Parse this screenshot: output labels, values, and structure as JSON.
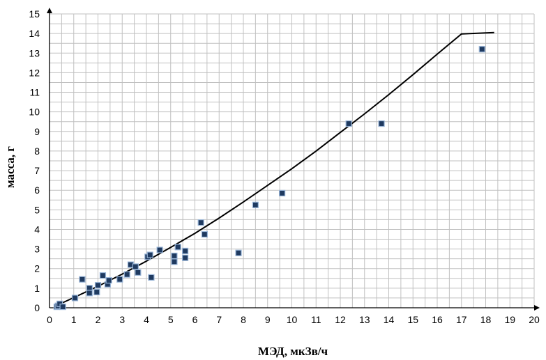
{
  "chart_data": {
    "type": "scatter",
    "title": "",
    "xlabel": "МЭД, мкЗв/ч",
    "ylabel": "масса, г",
    "xlim": [
      0,
      20
    ],
    "ylim": [
      0,
      15
    ],
    "x_ticks": [
      "0",
      "1",
      "2",
      "3",
      "4",
      "5",
      "6",
      "7",
      "8",
      "9",
      "10",
      "11",
      "12",
      "13",
      "14",
      "15",
      "16",
      "17",
      "18",
      "19",
      "20"
    ],
    "y_ticks": [
      "0",
      "1",
      "2",
      "3",
      "4",
      "5",
      "6",
      "7",
      "8",
      "9",
      "10",
      "11",
      "12",
      "13",
      "14",
      "15"
    ],
    "grid": true,
    "legend": "none",
    "colors": {
      "marker_fill": "#1f3a60",
      "marker_edge": "#9ab6d8",
      "trend": "#000000",
      "grid": "#c0c0c0"
    },
    "series": [
      {
        "type": "scatter",
        "points": [
          [
            0.3,
            0.05
          ],
          [
            0.35,
            0.1
          ],
          [
            0.42,
            0.2
          ],
          [
            0.55,
            0.05
          ],
          [
            1.05,
            0.5
          ],
          [
            1.35,
            1.45
          ],
          [
            1.65,
            1.0
          ],
          [
            1.65,
            0.75
          ],
          [
            1.95,
            0.8
          ],
          [
            2.0,
            1.15
          ],
          [
            2.2,
            1.65
          ],
          [
            2.4,
            1.2
          ],
          [
            2.45,
            1.4
          ],
          [
            2.9,
            1.45
          ],
          [
            3.2,
            1.7
          ],
          [
            3.35,
            2.2
          ],
          [
            3.55,
            2.1
          ],
          [
            3.65,
            1.8
          ],
          [
            4.05,
            2.6
          ],
          [
            4.15,
            2.7
          ],
          [
            4.2,
            1.55
          ],
          [
            4.55,
            2.95
          ],
          [
            5.15,
            2.35
          ],
          [
            5.15,
            2.65
          ],
          [
            5.3,
            3.1
          ],
          [
            5.6,
            2.9
          ],
          [
            5.6,
            2.55
          ],
          [
            6.25,
            4.35
          ],
          [
            6.4,
            3.75
          ],
          [
            7.8,
            2.8
          ],
          [
            8.5,
            5.25
          ],
          [
            9.6,
            5.85
          ],
          [
            12.35,
            9.4
          ],
          [
            13.7,
            9.4
          ],
          [
            17.85,
            13.2
          ]
        ]
      },
      {
        "type": "line",
        "points": [
          [
            0.3,
            0.12
          ],
          [
            1,
            0.52
          ],
          [
            2,
            1.1
          ],
          [
            3,
            1.72
          ],
          [
            4,
            2.38
          ],
          [
            5,
            3.08
          ],
          [
            6,
            3.8
          ],
          [
            7,
            4.58
          ],
          [
            8,
            5.4
          ],
          [
            9,
            6.25
          ],
          [
            10,
            7.1
          ],
          [
            11,
            8.0
          ],
          [
            12,
            8.95
          ],
          [
            13,
            9.9
          ],
          [
            14,
            10.88
          ],
          [
            15,
            11.9
          ],
          [
            16,
            12.95
          ],
          [
            17,
            13.98
          ],
          [
            18.35,
            14.05
          ]
        ]
      }
    ]
  }
}
